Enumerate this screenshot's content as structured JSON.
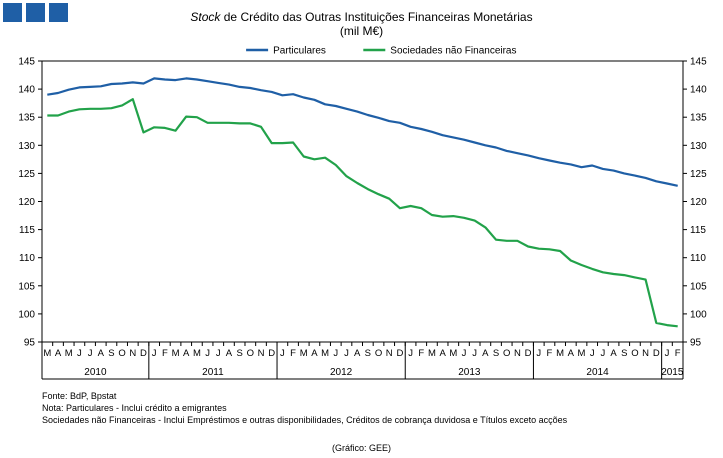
{
  "header": {
    "title_italic": "Stock",
    "title_rest": " de Crédito das Outras Instituições  Financeiras Monetárias",
    "subtitle": "(mil M€)",
    "squares_color": "#1f5fa6"
  },
  "footer": {
    "line1": "Fonte: BdP, Bpstat",
    "line2": "Nota: Particulares - Inclui crédito a emigrantes",
    "line3": "Sociedades não Financeiras - Inclui Empréstimos e outras disponibilidades, Créditos de cobrança duvidosa e Títulos exceto acções",
    "source": "(Gráfico: GEE)"
  },
  "chart_data": {
    "type": "line",
    "title": "Stock de Crédito das Outras Instituições  Financeiras Monetárias",
    "subtitle": "(mil M€)",
    "ylim": [
      95,
      145
    ],
    "yticks": [
      95,
      100,
      105,
      110,
      115,
      120,
      125,
      130,
      135,
      140,
      145
    ],
    "legend_position": "top",
    "month_labels": [
      "M",
      "A",
      "M",
      "J",
      "J",
      "A",
      "S",
      "O",
      "N",
      "D",
      "J",
      "F",
      "M",
      "A",
      "M",
      "J",
      "J",
      "A",
      "S",
      "O",
      "N",
      "D",
      "J",
      "F",
      "M",
      "A",
      "M",
      "J",
      "J",
      "A",
      "S",
      "O",
      "N",
      "D",
      "J",
      "F",
      "M",
      "A",
      "M",
      "J",
      "J",
      "A",
      "S",
      "O",
      "N",
      "D",
      "J",
      "F",
      "M",
      "A",
      "M",
      "J",
      "J",
      "A",
      "S",
      "O",
      "N",
      "D",
      "J",
      "F"
    ],
    "years": [
      {
        "label": "2010",
        "start": 0,
        "end": 9
      },
      {
        "label": "2011",
        "start": 10,
        "end": 21
      },
      {
        "label": "2012",
        "start": 22,
        "end": 33
      },
      {
        "label": "2013",
        "start": 34,
        "end": 45
      },
      {
        "label": "2014",
        "start": 46,
        "end": 57
      },
      {
        "label": "2015",
        "start": 58,
        "end": 59
      }
    ],
    "series": [
      {
        "name": "Particulares",
        "color": "#1f5fa6",
        "values": [
          139.0,
          139.3,
          139.9,
          140.3,
          140.4,
          140.5,
          140.9,
          141.0,
          141.2,
          141.0,
          141.9,
          141.7,
          141.6,
          141.9,
          141.7,
          141.4,
          141.1,
          140.8,
          140.4,
          140.2,
          139.8,
          139.5,
          138.9,
          139.1,
          138.5,
          138.1,
          137.3,
          137.0,
          136.5,
          136.0,
          135.4,
          134.9,
          134.3,
          134.0,
          133.3,
          132.9,
          132.4,
          131.8,
          131.4,
          131.0,
          130.5,
          130.0,
          129.6,
          129.0,
          128.6,
          128.2,
          127.7,
          127.3,
          126.9,
          126.6,
          126.1,
          126.4,
          125.8,
          125.5,
          125.0,
          124.6,
          124.2,
          123.6,
          123.2,
          122.8
        ]
      },
      {
        "name": "Sociedades não Financeiras",
        "color": "#22a24a",
        "values": [
          135.3,
          135.3,
          136.0,
          136.4,
          136.5,
          136.5,
          136.6,
          137.1,
          138.2,
          132.3,
          133.2,
          133.1,
          132.6,
          135.1,
          135.0,
          134.0,
          134.0,
          134.0,
          133.9,
          133.9,
          133.3,
          130.4,
          130.4,
          130.5,
          128.0,
          127.5,
          127.8,
          126.5,
          124.5,
          123.3,
          122.2,
          121.3,
          120.5,
          118.8,
          119.2,
          118.8,
          117.6,
          117.3,
          117.4,
          117.1,
          116.6,
          115.4,
          113.2,
          113.0,
          113.0,
          112.0,
          111.6,
          111.5,
          111.2,
          109.5,
          108.7,
          108.0,
          107.4,
          107.1,
          106.9,
          106.5,
          106.1,
          98.4,
          98.0,
          97.8
        ]
      }
    ]
  }
}
